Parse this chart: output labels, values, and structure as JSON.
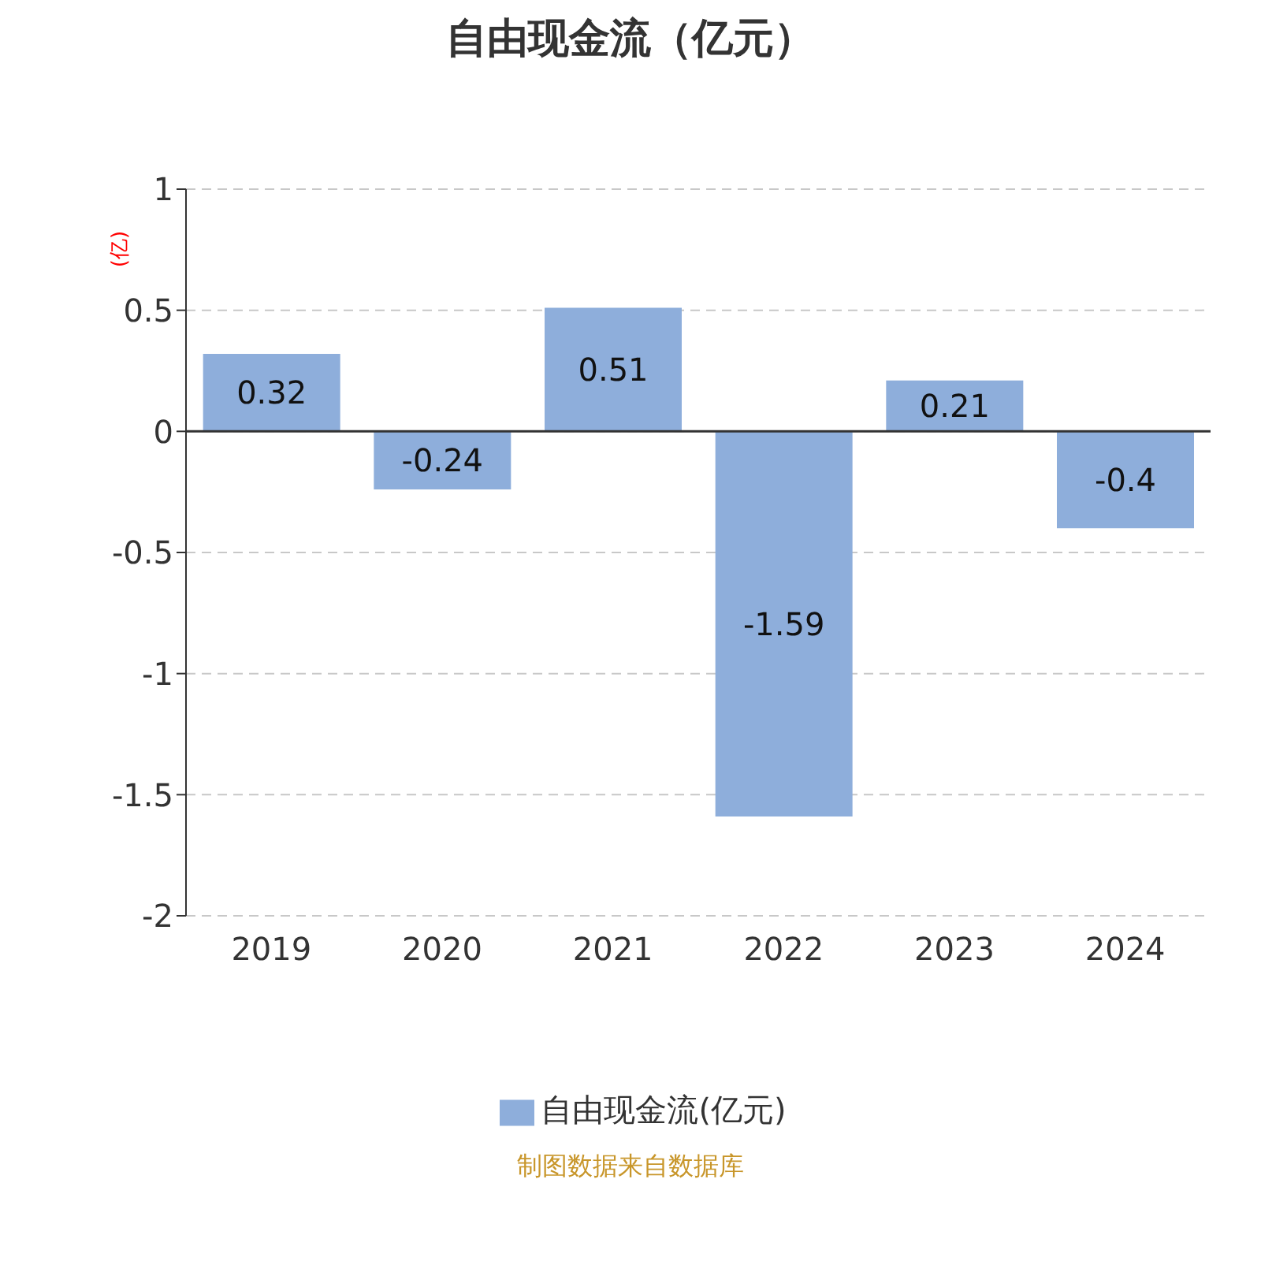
{
  "chart_data": {
    "type": "bar",
    "title": "自由现金流（亿元）",
    "ylabel": "(亿)",
    "categories": [
      "2019",
      "2020",
      "2021",
      "2022",
      "2023",
      "2024"
    ],
    "series": [
      {
        "name": "自由现金流(亿元)",
        "color": "#8eaedb",
        "values": [
          0.32,
          -0.24,
          0.51,
          -1.59,
          0.21,
          -0.4
        ]
      }
    ],
    "ylim": [
      -2,
      1
    ],
    "yticks": [
      -2,
      -1.5,
      -1,
      -0.5,
      0,
      0.5,
      1
    ],
    "grid": "y",
    "legend": "bottom",
    "data_labels": true,
    "annotations": [
      "制图数据来自数据库"
    ]
  }
}
